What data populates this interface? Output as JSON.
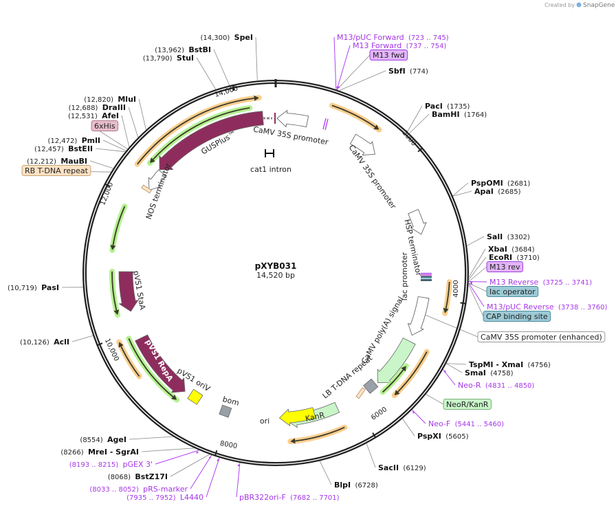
{
  "credit": {
    "text": "Created by",
    "brand": "SnapGene"
  },
  "plasmid": {
    "name": "pXYB031",
    "size": "14,520 bp",
    "total_bp": 14520
  },
  "tick_labels": [
    {
      "bp": 2000,
      "label": "2000"
    },
    {
      "bp": 4000,
      "label": "4000"
    },
    {
      "bp": 6000,
      "label": "6000"
    },
    {
      "bp": 8000,
      "label": "8000"
    },
    {
      "bp": 10000,
      "label": "10,000"
    },
    {
      "bp": 12000,
      "label": "12,000"
    },
    {
      "bp": 14000,
      "label": "14,000"
    }
  ],
  "sites": [
    {
      "name": "SpeI",
      "pos": "(14,300)",
      "bp": 14300,
      "kind": "enzyme"
    },
    {
      "name": "BstBI",
      "pos": "(13,962)",
      "bp": 13962,
      "kind": "enzyme"
    },
    {
      "name": "StuI",
      "pos": "(13,790)",
      "bp": 13790,
      "kind": "enzyme"
    },
    {
      "name": "MluI",
      "pos": "(12,820)",
      "bp": 12820,
      "kind": "enzyme"
    },
    {
      "name": "DraIII",
      "pos": "(12,688)",
      "bp": 12688,
      "kind": "enzyme"
    },
    {
      "name": "AfeI",
      "pos": "(12,531)",
      "bp": 12531,
      "kind": "enzyme"
    },
    {
      "name": "6xHis",
      "bp": 12500,
      "kind": "box",
      "fill": "#e8bccb",
      "stroke": "#b07d90"
    },
    {
      "name": "PmlI",
      "pos": "(12,472)",
      "bp": 12472,
      "kind": "enzyme"
    },
    {
      "name": "BstEII",
      "pos": "(12,457)",
      "bp": 12457,
      "kind": "enzyme"
    },
    {
      "name": "MauBI",
      "pos": "(12,212)",
      "bp": 12212,
      "kind": "enzyme"
    },
    {
      "name": "RB T-DNA repeat",
      "bp": 12160,
      "kind": "box",
      "fill": "#fde2c4",
      "stroke": "#c9a373"
    },
    {
      "name": "PasI",
      "pos": "(10,719)",
      "bp": 10719,
      "kind": "enzyme"
    },
    {
      "name": "AclI",
      "pos": "(10,126)",
      "bp": 10126,
      "kind": "enzyme"
    },
    {
      "name": "AgeI",
      "pos": "(8554)",
      "bp": 8554,
      "kind": "enzyme"
    },
    {
      "name": "MreI  - SgrAI",
      "pos": "(8266)",
      "bp": 8266,
      "kind": "enzyme"
    },
    {
      "name": "pGEX 3'",
      "pos": "(8193 .. 8215)",
      "bp": 8204,
      "kind": "primer"
    },
    {
      "name": "BstZ17I",
      "pos": "(8068)",
      "bp": 8068,
      "kind": "enzyme"
    },
    {
      "name": "pRS-marker",
      "pos": "(8033 .. 8052)",
      "bp": 8042,
      "kind": "primer"
    },
    {
      "name": "L4440",
      "pos": "(7935 .. 7952)",
      "bp": 7943,
      "kind": "primer"
    },
    {
      "name": "pBR322ori-F",
      "pos": "(7682 .. 7701)",
      "bp": 7691,
      "kind": "primer"
    },
    {
      "name": "BlpI",
      "pos": "(6728)",
      "bp": 6728,
      "kind": "enzyme"
    },
    {
      "name": "SacII",
      "pos": "(6129)",
      "bp": 6129,
      "kind": "enzyme"
    },
    {
      "name": "PspXI",
      "pos": "(5605)",
      "bp": 5605,
      "kind": "enzyme"
    },
    {
      "name": "Neo-F",
      "pos": "(5441 .. 5460)",
      "bp": 5450,
      "kind": "primer"
    },
    {
      "name": "NeoR/KanR",
      "bp": 5200,
      "kind": "box",
      "fill": "#c9f5c9",
      "stroke": "#7db07d"
    },
    {
      "name": "Neo-R",
      "pos": "(4831 .. 4850)",
      "bp": 4840,
      "kind": "primer"
    },
    {
      "name": "SmaI",
      "pos": "(4758)",
      "bp": 4758,
      "kind": "enzyme"
    },
    {
      "name": "TspMI  - XmaI",
      "pos": "(4756)",
      "bp": 4756,
      "kind": "enzyme"
    },
    {
      "name": "CaMV 35S promoter (enhanced)",
      "bp": 4250,
      "kind": "box",
      "fill": "#ffffff",
      "stroke": "#999999"
    },
    {
      "name": "CAP binding site",
      "bp": 3770,
      "kind": "box",
      "fill": "#9ccad6",
      "stroke": "#4b8c9c"
    },
    {
      "name": "M13/pUC Reverse",
      "pos": "(3738 .. 3760)",
      "bp": 3749,
      "kind": "primer"
    },
    {
      "name": "lac operator",
      "bp": 3752,
      "kind": "box",
      "fill": "#9ccad6",
      "stroke": "#4b8c9c"
    },
    {
      "name": "M13 Reverse",
      "pos": "(3725 .. 3741)",
      "bp": 3733,
      "kind": "primer"
    },
    {
      "name": "M13 rev",
      "bp": 3733,
      "kind": "box",
      "fill": "#e2b4f8",
      "stroke": "#a040e0"
    },
    {
      "name": "EcoRI",
      "pos": "(3710)",
      "bp": 3710,
      "kind": "enzyme"
    },
    {
      "name": "XbaI",
      "pos": "(3684)",
      "bp": 3684,
      "kind": "enzyme"
    },
    {
      "name": "SalI",
      "pos": "(3302)",
      "bp": 3302,
      "kind": "enzyme"
    },
    {
      "name": "ApaI",
      "pos": "(2685)",
      "bp": 2685,
      "kind": "enzyme"
    },
    {
      "name": "PspOMI",
      "pos": "(2681)",
      "bp": 2681,
      "kind": "enzyme"
    },
    {
      "name": "PacI",
      "pos": "(1735)",
      "bp": 1735,
      "kind": "enzyme"
    },
    {
      "name": "BamHI",
      "pos": "(1764)",
      "bp": 1764,
      "kind": "enzyme"
    },
    {
      "name": "SbfI",
      "pos": "(774)",
      "bp": 774,
      "kind": "enzyme"
    },
    {
      "name": "M13 fwd",
      "bp": 745,
      "kind": "box",
      "fill": "#e2b4f8",
      "stroke": "#a040e0"
    },
    {
      "name": "M13 Forward",
      "pos": "(737 .. 754)",
      "bp": 745,
      "kind": "primer"
    },
    {
      "name": "M13/pUC Forward",
      "pos": "(723 .. 745)",
      "bp": 734,
      "kind": "primer"
    }
  ],
  "features": [
    {
      "id": "orange-top",
      "start": 12430,
      "end": 14300,
      "strand": "+",
      "style": "glow",
      "color": "#f8c67a"
    },
    {
      "id": "green-top",
      "start": 12550,
      "end": 14160,
      "strand": "-",
      "style": "glow",
      "color": "#a8ee7e"
    },
    {
      "id": "gusplus",
      "start": 12570,
      "end": 14330,
      "strand": "-",
      "style": "block",
      "color": "#8e2d5d"
    },
    {
      "id": "camv35s-1",
      "start": 20,
      "end": 476,
      "strand": "-",
      "style": "block",
      "color": "#ffffff"
    },
    {
      "id": "orange-right",
      "start": 750,
      "end": 1445,
      "strand": "+",
      "style": "glow",
      "color": "#f8c67a"
    },
    {
      "id": "camv35s-2",
      "start": 1210,
      "end": 1610,
      "strand": "+",
      "style": "block",
      "color": "#ffffff"
    },
    {
      "id": "hsp-terminator",
      "start": 2660,
      "end": 3030,
      "strand": "+",
      "style": "block",
      "color": "#ffffff"
    },
    {
      "id": "orange-4000",
      "start": 3750,
      "end": 4170,
      "strand": "+",
      "style": "glow",
      "color": "#f8c67a"
    },
    {
      "id": "camv35s-enhanced",
      "start": 4010,
      "end": 4620,
      "strand": "+",
      "style": "block",
      "color": "#ffffff"
    },
    {
      "id": "camv-polya",
      "start": 4720,
      "end": 5530,
      "strand": "+",
      "style": "block",
      "color": "#c9f5c9"
    },
    {
      "id": "green-neo",
      "start": 5060,
      "end": 5570,
      "strand": "-",
      "style": "glow",
      "color": "#a8ee7e"
    },
    {
      "id": "orange-neo",
      "start": 4740,
      "end": 5480,
      "strand": "+",
      "style": "glow",
      "color": "#f8c67a"
    },
    {
      "id": "kanr",
      "start": 6270,
      "end": 7090,
      "strand": "+",
      "style": "block",
      "color": "#c9f5c9"
    },
    {
      "id": "orange-bottom",
      "start": 6290,
      "end": 7060,
      "strand": "+",
      "style": "glow",
      "color": "#f8c67a"
    },
    {
      "id": "ori",
      "start": 6640,
      "end": 7200,
      "strand": "+",
      "style": "block",
      "color": "#ffff00"
    },
    {
      "id": "pvs1-repa",
      "start": 8770,
      "end": 9850,
      "strand": "-",
      "style": "block",
      "color": "#8e2d5d"
    },
    {
      "id": "green-repa",
      "start": 8790,
      "end": 9920,
      "strand": "-",
      "style": "glow",
      "color": "#a8ee7e"
    },
    {
      "id": "orange-left",
      "start": 9390,
      "end": 9930,
      "strand": "+",
      "style": "glow",
      "color": "#f8c67a"
    },
    {
      "id": "pvs1-staa",
      "start": 10290,
      "end": 10910,
      "strand": "-",
      "style": "block",
      "color": "#8e2d5d"
    },
    {
      "id": "green-staa",
      "start": 10290,
      "end": 10910,
      "strand": "-",
      "style": "glow",
      "color": "#a8ee7e"
    },
    {
      "id": "green-left-upper",
      "start": 11210,
      "end": 11850,
      "strand": "-",
      "style": "glow",
      "color": "#a8ee7e"
    },
    {
      "id": "nos-terminator",
      "start": 12230,
      "end": 12560,
      "strand": "-",
      "style": "block",
      "color": "#ffffff"
    }
  ],
  "inner_labels": [
    {
      "text": "CaMV 35S promoter"
    },
    {
      "text": "GUSPlus™"
    },
    {
      "text": "cat1 intron"
    },
    {
      "text": "NOS terminator"
    },
    {
      "text": "CaMV 35S promoter"
    },
    {
      "text": "HSP terminator"
    },
    {
      "text": "lac promoter"
    },
    {
      "text": "CaMV poly(A) signal"
    },
    {
      "text": "LB T-DNA repeat"
    },
    {
      "text": "KanR"
    },
    {
      "text": "ori"
    },
    {
      "text": "bom"
    },
    {
      "text": "pVS1 oriV"
    },
    {
      "text": "pVS1 RepA"
    },
    {
      "text": "pVS1 StaA"
    }
  ]
}
